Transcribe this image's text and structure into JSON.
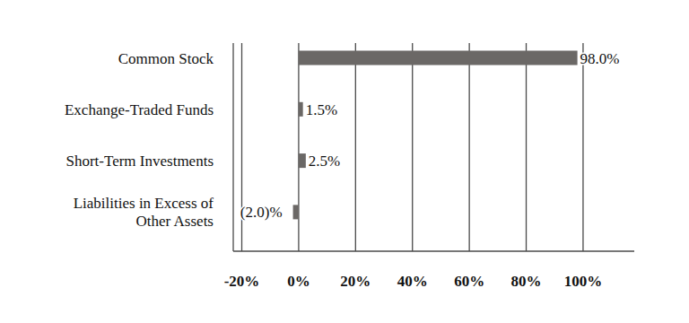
{
  "chart_data": {
    "type": "bar",
    "orientation": "horizontal",
    "categories": [
      "Common Stock",
      "Exchange-Traded Funds",
      "Short-Term Investments",
      "Liabilities in Excess of Other Assets"
    ],
    "values": [
      98.0,
      1.5,
      2.5,
      -2.0
    ],
    "value_labels": [
      "98.0%",
      "1.5%",
      "2.5%",
      "(2.0)%"
    ],
    "color": "#6b6866",
    "xlim": [
      -23,
      118
    ],
    "xticks": [
      {
        "value": -20,
        "label": "-20%"
      },
      {
        "value": 0,
        "label": "0%"
      },
      {
        "value": 20,
        "label": "20%"
      },
      {
        "value": 40,
        "label": "40%"
      },
      {
        "value": 60,
        "label": "60%"
      },
      {
        "value": 80,
        "label": "80%"
      },
      {
        "value": 100,
        "label": "100%"
      }
    ],
    "grid": true,
    "data_labels": true
  }
}
